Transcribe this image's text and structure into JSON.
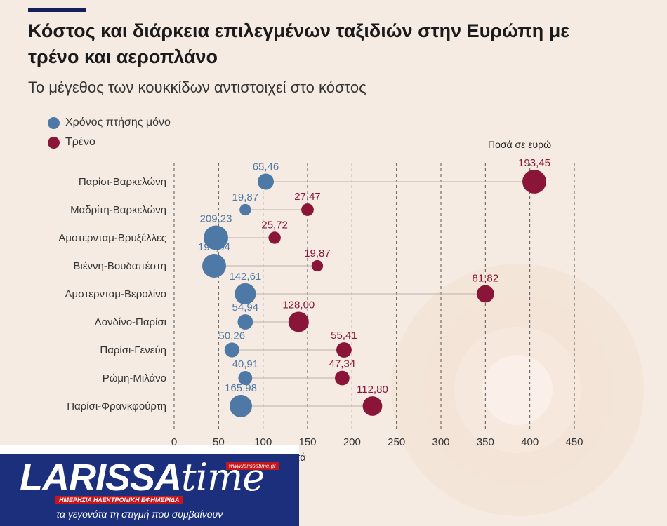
{
  "chart_data": {
    "type": "scatter",
    "title": "Κόστος και διάρκεια επιλεγμένων ταξιδιών στην Ευρώπη με τρένο και αεροπλάνο",
    "subtitle": "Το μέγεθος των κουκκίδων αντιστοιχεί στο κόστος",
    "xlabel": "σε λεπτά",
    "size_note": "Ποσά σε ευρώ",
    "xlim": [
      0,
      450
    ],
    "xticks": [
      0,
      50,
      100,
      150,
      200,
      250,
      300,
      350,
      400,
      450
    ],
    "legend_position": "top-left",
    "grid": "vertical dashed",
    "routes": [
      "Παρίσι-Βαρκελώνη",
      "Μαδρίτη-Βαρκελώνη",
      "Αμστερνταμ-Βρυξέλλες",
      "Βιέννη-Βουδαπέστη",
      "Αμστερνταμ-Βερολίνο",
      "Λονδίνο-Παρίσι",
      "Παρίσι-Γενεύη",
      "Ρώμη-Μιλάνο",
      "Παρίσι-Φρανκφούρτη"
    ],
    "series": [
      {
        "name": "Χρόνος πτήσης μόνο",
        "color": "#4e79a7",
        "minutes": [
          103,
          80,
          47,
          45,
          80,
          80,
          65,
          80,
          75
        ],
        "cost": [
          65.46,
          19.87,
          209.23,
          194.04,
          142.61,
          54.94,
          50.26,
          40.91,
          165.98
        ],
        "labels": [
          "65,46",
          "19,87",
          "209,23",
          "194,04",
          "142,61",
          "54,94",
          "50,26",
          "40,91",
          "165,98"
        ]
      },
      {
        "name": "Τρένο",
        "color": "#8a1538",
        "minutes": [
          405,
          150,
          113,
          161,
          350,
          140,
          191,
          189,
          223
        ],
        "cost": [
          193.45,
          27.47,
          25.72,
          19.87,
          81.82,
          128.0,
          55.41,
          47.34,
          112.8
        ],
        "labels": [
          "193,45",
          "27,47",
          "25,72",
          "19,87",
          "81,82",
          "128,00",
          "55,41",
          "47,34",
          "112,80"
        ]
      }
    ]
  },
  "logo": {
    "name_part1": "LARISSA",
    "name_part2": "time",
    "url": "www.larissatime.gr",
    "tagline": "ΗΜΕΡΗΣΙΑ ΗΛΕΚΤΡΟΝΙΚΗ ΕΦΗΜΕΡΙΔΑ",
    "slogan": "τα γεγονότα τη στιγμή που συμβαίνουν"
  }
}
